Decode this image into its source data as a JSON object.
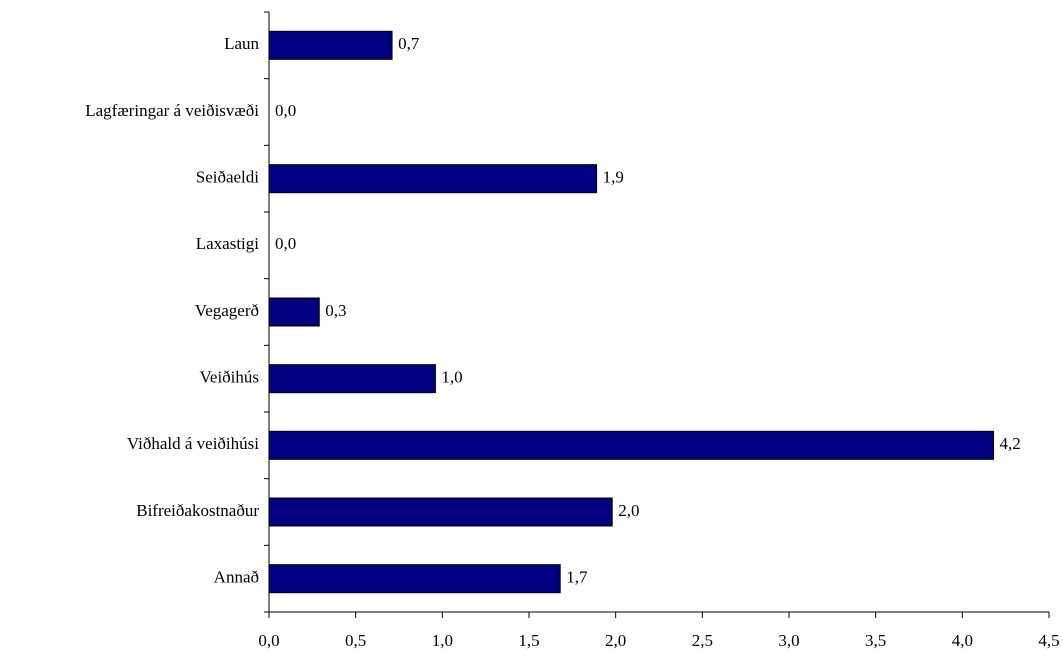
{
  "chart_data": {
    "type": "barh",
    "categories": [
      "Laun",
      "Lagfæringar á veiðisvæði",
      "Seiðaeldi",
      "Laxastigi",
      "Vegagerð",
      "Veiðihús",
      "Viðhald á veiðihúsi",
      "Bifreiðakostnaður",
      "Annað"
    ],
    "values": [
      0.71,
      0.0,
      1.89,
      0.0,
      0.29,
      0.96,
      4.18,
      1.98,
      1.68
    ],
    "value_labels": [
      "0,7",
      "0,0",
      "1,9",
      "0,0",
      "0,3",
      "1,0",
      "4,2",
      "2,0",
      "1,7"
    ],
    "color": "#000080",
    "xlim": [
      0,
      4.5
    ],
    "xticks": [
      {
        "value": 0,
        "label": "0,0"
      },
      {
        "value": 0.5,
        "label": "0,5"
      },
      {
        "value": 1,
        "label": "1,0"
      },
      {
        "value": 1.5,
        "label": "1,5"
      },
      {
        "value": 2,
        "label": "2,0"
      },
      {
        "value": 2.5,
        "label": "2,5"
      },
      {
        "value": 3,
        "label": "3,0"
      },
      {
        "value": 3.5,
        "label": "3,5"
      },
      {
        "value": 4,
        "label": "4,0"
      },
      {
        "value": 4.5,
        "label": "4,5"
      }
    ],
    "grid": false
  }
}
